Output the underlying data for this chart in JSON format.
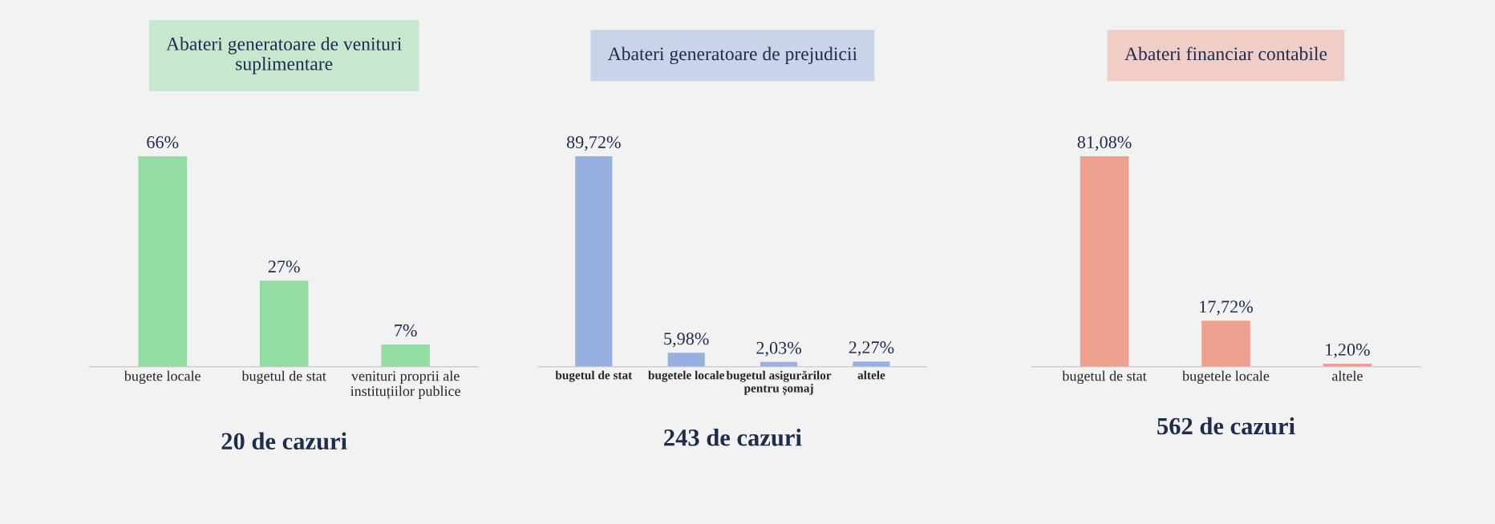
{
  "chart_data": [
    {
      "type": "bar",
      "title": "Abateri generatoare de venituri\nsuplimentare",
      "xlabel": "20 de cazuri",
      "categories": [
        "bugete locale",
        "bugetul de stat",
        "venituri proprii ale\ninstituțiilor publice"
      ],
      "series": [
        {
          "color": "#93dca4",
          "values": [
            66,
            27,
            7
          ],
          "value_labels": [
            "66%",
            "27%",
            "7%"
          ]
        }
      ],
      "tick_labels": "x",
      "grid": false
    },
    {
      "type": "bar",
      "title": "Abateri generatoare de prejudicii",
      "xlabel": "243 de cazuri",
      "categories": [
        "bugetul de stat",
        "bugetele locale",
        "bugetul asigurărilor\npentru șomaj",
        "altele"
      ],
      "series": [
        {
          "color": "#97b0e0",
          "values": [
            89.72,
            5.98,
            2.03,
            2.27
          ],
          "value_labels": [
            "89,72%",
            "5,98%",
            "2,03%",
            "2,27%"
          ]
        }
      ],
      "tick_labels": "x",
      "grid": false
    },
    {
      "type": "bar",
      "title": "Abateri financiar contabile",
      "xlabel": "562 de cazuri",
      "categories": [
        "bugetul de stat",
        "bugetele locale",
        "altele"
      ],
      "series": [
        {
          "color": "#eda090",
          "values": [
            81.08,
            17.72,
            1.2
          ],
          "value_labels": [
            "81,08%",
            "17,72%",
            "1,20%"
          ]
        }
      ],
      "tick_labels": "x",
      "grid": false
    }
  ]
}
